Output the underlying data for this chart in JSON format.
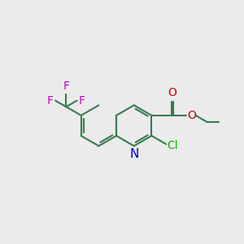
{
  "bg_color": "#ebebeb",
  "bond_color": "#3a7a50",
  "bond_width": 1.5,
  "atom_colors": {
    "N": "#0000cc",
    "O": "#cc0000",
    "Cl": "#00bb00",
    "F": "#cc00cc",
    "C": "#3a7a50"
  },
  "font_size": 10,
  "figsize": [
    3.0,
    3.0
  ],
  "dpi": 100
}
